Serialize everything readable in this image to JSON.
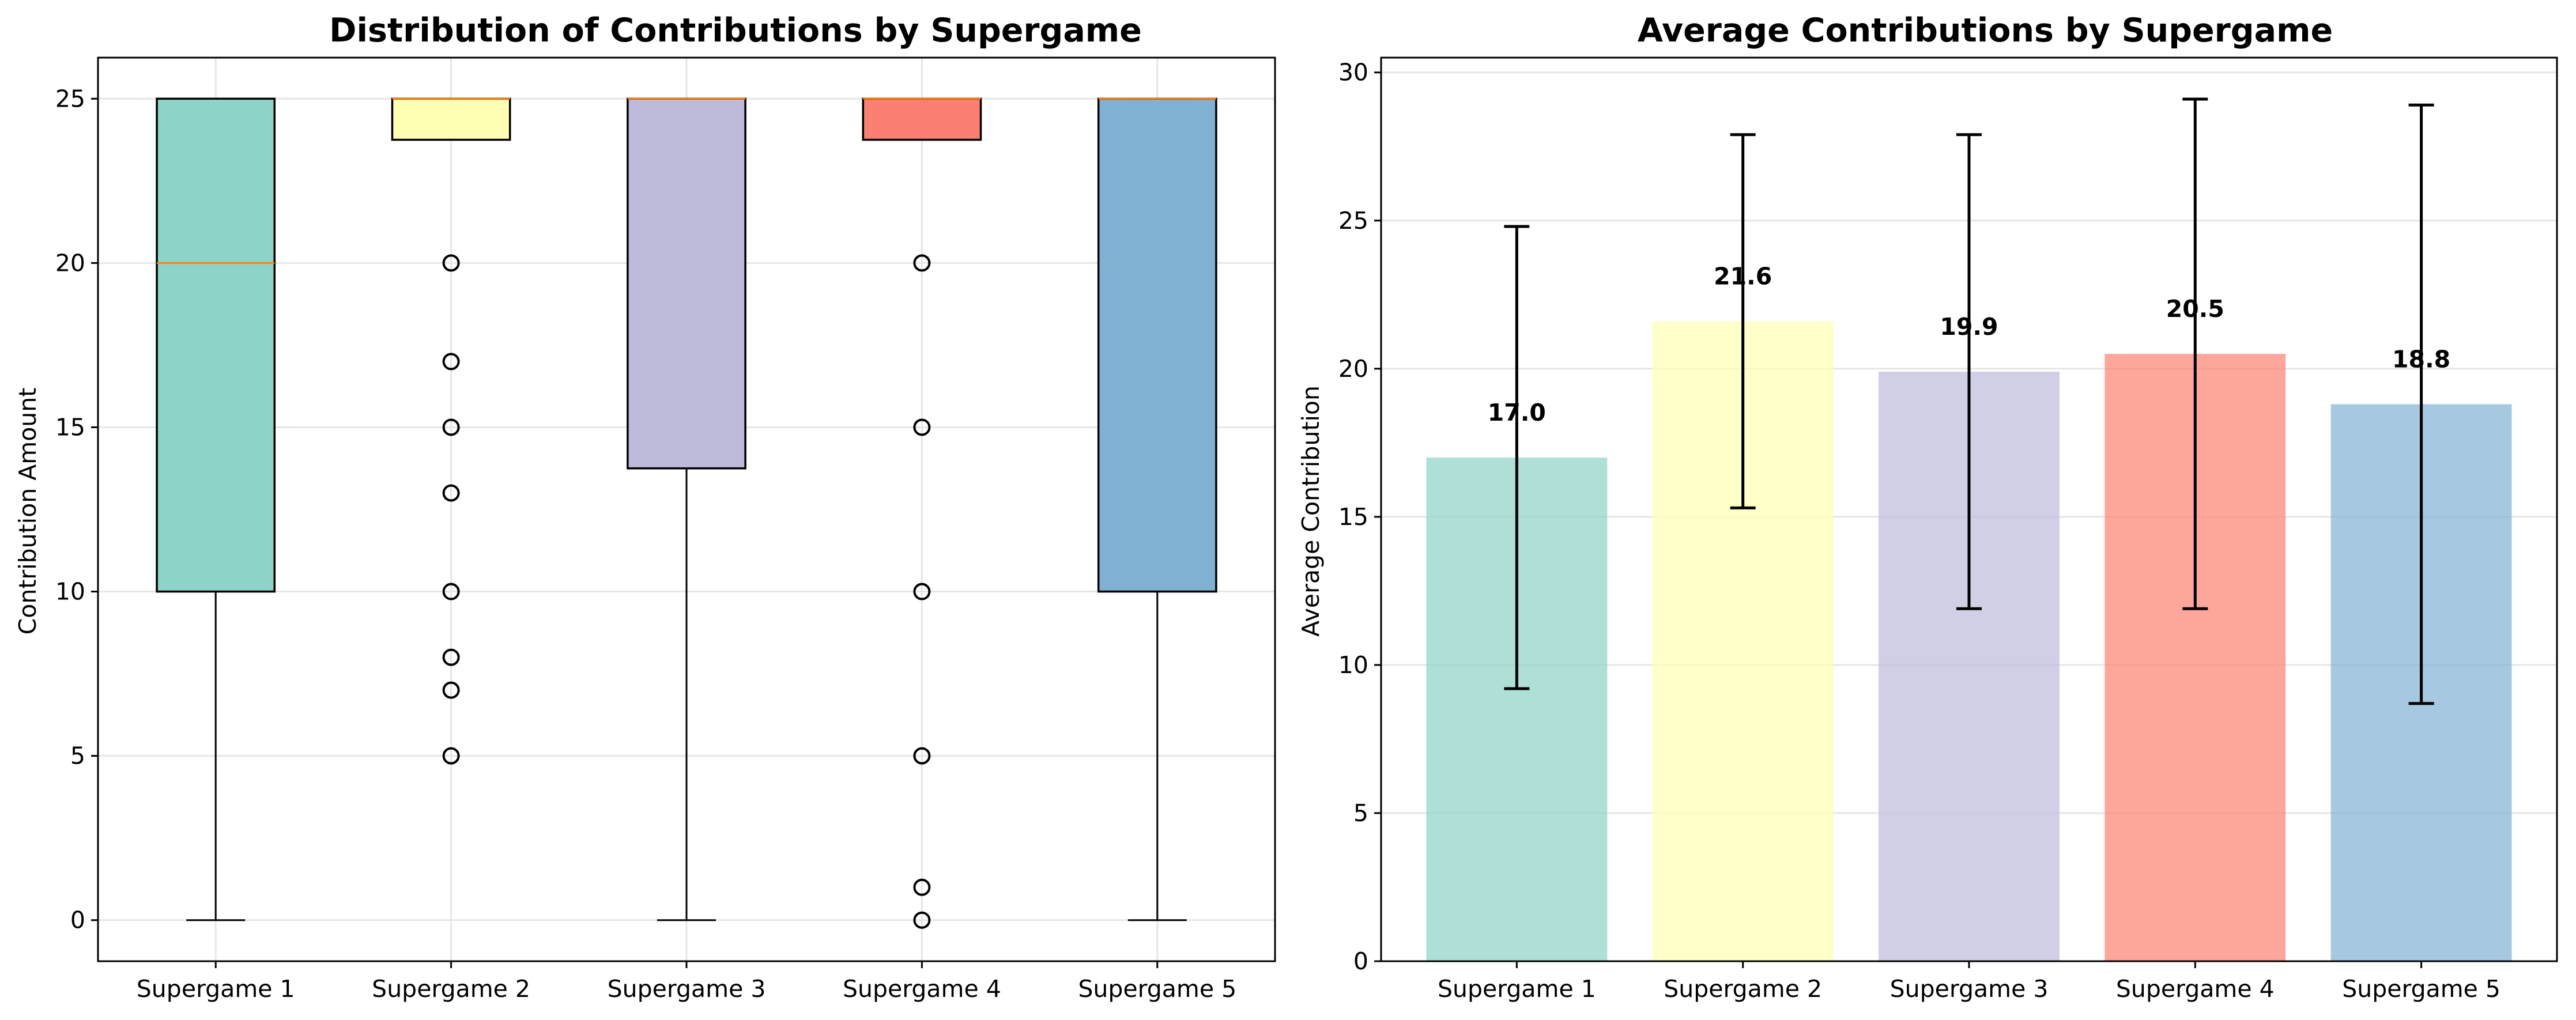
{
  "chart_data": [
    {
      "type": "box",
      "title": "Distribution of Contributions by Supergame",
      "xlabel": "",
      "ylabel": "Contribution Amount",
      "categories": [
        "Supergame 1",
        "Supergame 2",
        "Supergame 3",
        "Supergame 4",
        "Supergame 5"
      ],
      "ylim": [
        -1.25,
        26.25
      ],
      "yticks": [
        0,
        5,
        10,
        15,
        20,
        25
      ],
      "grid": true,
      "boxes": [
        {
          "whislo": 0,
          "q1": 10,
          "med": 20,
          "q3": 25,
          "whishi": 25,
          "fliers": [],
          "color": "#8dd3c7"
        },
        {
          "whislo": 23.75,
          "q1": 23.75,
          "med": 25,
          "q3": 25,
          "whishi": 25,
          "fliers": [
            20,
            17,
            15,
            13,
            10,
            8,
            7,
            5
          ],
          "color": "#ffffb3"
        },
        {
          "whislo": 0,
          "q1": 13.75,
          "med": 25,
          "q3": 25,
          "whishi": 25,
          "fliers": [],
          "color": "#bebada"
        },
        {
          "whislo": 23.75,
          "q1": 23.75,
          "med": 25,
          "q3": 25,
          "whishi": 25,
          "fliers": [
            20,
            15,
            10,
            5,
            1,
            0
          ],
          "color": "#fb8072"
        },
        {
          "whislo": 0,
          "q1": 10,
          "med": 25,
          "q3": 25,
          "whishi": 25,
          "fliers": [],
          "color": "#80b1d3"
        }
      ]
    },
    {
      "type": "bar",
      "title": "Average Contributions by Supergame",
      "xlabel": "",
      "ylabel": "Average Contribution",
      "categories": [
        "Supergame 1",
        "Supergame 2",
        "Supergame 3",
        "Supergame 4",
        "Supergame 5"
      ],
      "values": [
        17.0,
        21.6,
        19.9,
        20.5,
        18.8
      ],
      "value_labels": [
        "17.0",
        "21.6",
        "19.9",
        "20.5",
        "18.8"
      ],
      "errors": [
        7.8,
        6.3,
        8.0,
        8.6,
        10.1
      ],
      "colors": [
        "#8dd3c7",
        "#ffffb3",
        "#bebada",
        "#fb8072",
        "#80b1d3"
      ],
      "ylim": [
        0,
        30.5
      ],
      "yticks": [
        0,
        5,
        10,
        15,
        20,
        25,
        30
      ],
      "grid": true
    }
  ]
}
